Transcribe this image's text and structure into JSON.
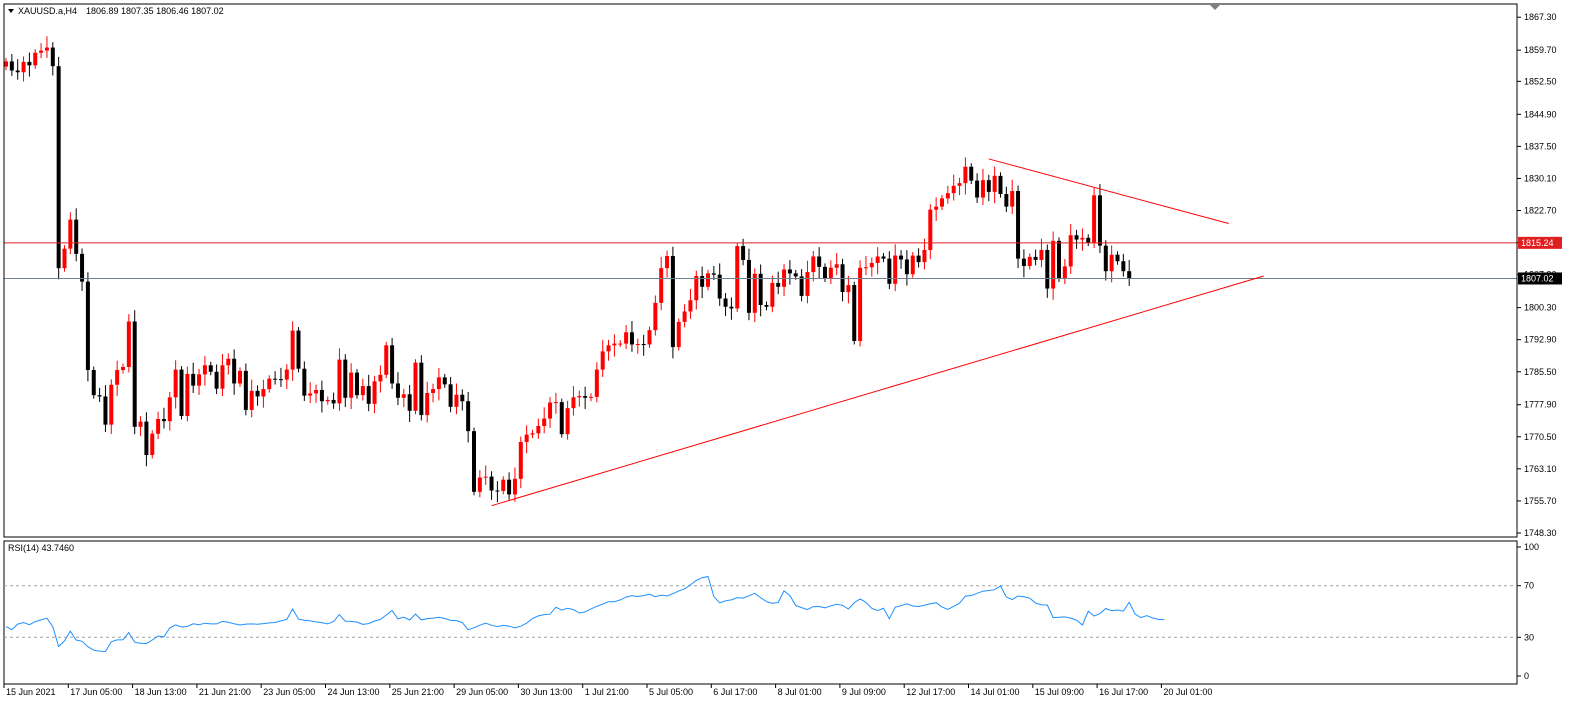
{
  "header": {
    "symbol": "XAUUSD.a,H4",
    "ohlc": "1806.89 1807.35 1806.46 1807.02"
  },
  "indicator": {
    "label": "RSI(14) 43.7460"
  },
  "colors": {
    "bull": "#ff0000",
    "bear": "#000000",
    "resistance_line": "#e02020",
    "trend_lines": "#ff0000",
    "rsi_line": "#1e90ff",
    "price_line": "#708090",
    "frame": "#000000"
  },
  "icons": [
    "dropdown-triangle-icon",
    "scroll-marker-icon"
  ],
  "chart_data": [
    {
      "type": "candlestick",
      "symbol": "XAUUSD.a",
      "timeframe": "H4",
      "ylim": [
        1748.3,
        1868.5
      ],
      "y_ticks": [
        "1867.30",
        "1859.70",
        "1852.50",
        "1844.90",
        "1837.50",
        "1830.10",
        "1822.70",
        "1815.30",
        "1807.90",
        "1800.30",
        "1792.90",
        "1785.50",
        "1777.90",
        "1770.50",
        "1763.10",
        "1755.70",
        "1748.30"
      ],
      "x_ticks": [
        "15 Jun 2021",
        "17 Jun 05:00",
        "18 Jun 13:00",
        "21 Jun 21:00",
        "23 Jun 05:00",
        "24 Jun 13:00",
        "25 Jun 21:00",
        "29 Jun 05:00",
        "30 Jun 13:00",
        "1 Jul 21:00",
        "5 Jul 05:00",
        "6 Jul 17:00",
        "8 Jul 01:00",
        "9 Jul 09:00",
        "12 Jul 17:00",
        "14 Jul 01:00",
        "15 Jul 09:00",
        "16 Jul 17:00",
        "20 Jul 01:00"
      ],
      "current_price": 1807.02,
      "current_price_label": "1807.02",
      "horizontal_level": 1815.24,
      "horizontal_level_label": "1815.24",
      "trend_lines": [
        {
          "name": "descending-resistance",
          "from": {
            "bar": 168,
            "price": 1834.6
          },
          "to": {
            "bar": 209,
            "price": 1819.7
          }
        },
        {
          "name": "ascending-support",
          "from": {
            "bar": 83,
            "price": 1754.6
          },
          "to": {
            "bar": 215,
            "price": 1807.6
          }
        }
      ],
      "closes": [
        1857.1,
        1855.0,
        1854.6,
        1857.0,
        1856.2,
        1859.1,
        1859.6,
        1860.3,
        1856.0,
        1809.4,
        1813.9,
        1820.6,
        1812.7,
        1806.3,
        1785.9,
        1780.1,
        1779.8,
        1773.3,
        1782.5,
        1785.9,
        1786.6,
        1797.1,
        1772.8,
        1774.0,
        1766.3,
        1771.2,
        1774.6,
        1774.1,
        1779.6,
        1786.0,
        1775.3,
        1785.0,
        1782.3,
        1784.9,
        1787.0,
        1785.5,
        1781.6,
        1787.0,
        1788.5,
        1782.8,
        1785.7,
        1776.7,
        1781.1,
        1779.8,
        1781.5,
        1783.9,
        1783.8,
        1783.7,
        1786.0,
        1795.0,
        1786.2,
        1780.0,
        1780.5,
        1781.3,
        1778.7,
        1779.0,
        1778.2,
        1788.3,
        1779.5,
        1785.3,
        1780.1,
        1782.2,
        1778.1,
        1783.3,
        1784.8,
        1791.6,
        1782.8,
        1779.5,
        1780.3,
        1776.5,
        1787.6,
        1775.5,
        1780.6,
        1781.5,
        1784.2,
        1782.6,
        1777.4,
        1780.2,
        1778.7,
        1771.8,
        1757.8,
        1761.1,
        1761.3,
        1758.1,
        1758.0,
        1760.6,
        1757.2,
        1760.8,
        1769.3,
        1771.0,
        1771.3,
        1773.0,
        1774.7,
        1778.4,
        1778.5,
        1771.1,
        1777.1,
        1779.6,
        1779.9,
        1779.5,
        1779.7,
        1786.0,
        1790.2,
        1791.6,
        1792.0,
        1792.0,
        1794.6,
        1791.8,
        1791.9,
        1791.8,
        1795.1,
        1801.4,
        1809.4,
        1812.2,
        1791.2,
        1797.0,
        1799.4,
        1802.0,
        1807.6,
        1805.1,
        1808.2,
        1807.9,
        1802.4,
        1800.5,
        1800.1,
        1814.5,
        1811.3,
        1799.1,
        1808.1,
        1800.9,
        1800.5,
        1806.0,
        1805.1,
        1809.1,
        1808.2,
        1807.5,
        1803.0,
        1808.5,
        1812.1,
        1809.7,
        1807.0,
        1809.5,
        1810.3,
        1803.9,
        1805.5,
        1792.6,
        1809.5,
        1809.6,
        1810.6,
        1812.1,
        1811.6,
        1805.8,
        1812.3,
        1811.4,
        1808.0,
        1812.3,
        1810.8,
        1813.6,
        1822.9,
        1823.6,
        1825.5,
        1826.7,
        1828.4,
        1829.0,
        1832.8,
        1829.6,
        1825.7,
        1829.7,
        1827.0,
        1830.7,
        1826.5,
        1823.6,
        1827.2,
        1811.6,
        1809.9,
        1812.0,
        1811.3,
        1813.6,
        1804.7,
        1815.7,
        1807.0,
        1809.8,
        1817.0,
        1816.0,
        1816.4,
        1815.3,
        1826.2,
        1814.6,
        1808.7,
        1812.5,
        1811.0,
        1808.7,
        1807.0
      ]
    },
    {
      "type": "line",
      "name": "RSI(14)",
      "value_label": "43.7460",
      "ylim": [
        0,
        100
      ],
      "y_ticks": [
        "100",
        "70",
        "30",
        "0"
      ],
      "levels": [
        70,
        30
      ],
      "values": [
        38.3,
        35.9,
        40.2,
        41.5,
        39.8,
        42.2,
        43.5,
        44.8,
        38.3,
        22.9,
        27.2,
        34.8,
        27.9,
        26.9,
        22.7,
        20.0,
        19.3,
        18.9,
        26.5,
        28.0,
        28.1,
        33.7,
        26.2,
        25.4,
        25.1,
        27.9,
        30.9,
        30.4,
        37.3,
        39.6,
        38.0,
        38.4,
        40.5,
        39.8,
        40.9,
        40.4,
        40.4,
        42.3,
        41.6,
        40.5,
        39.5,
        40.2,
        40.4,
        40.1,
        40.6,
        41.2,
        41.5,
        42.7,
        43.8,
        51.9,
        44.1,
        43.2,
        42.7,
        41.9,
        41.3,
        40.4,
        42.3,
        47.6,
        42.5,
        42.3,
        41.8,
        40.0,
        40.6,
        42.6,
        43.8,
        47.3,
        50.7,
        44.3,
        45.6,
        43.4,
        48.0,
        43.5,
        44.5,
        44.9,
        45.6,
        44.6,
        43.1,
        43.0,
        41.4,
        35.9,
        37.4,
        39.4,
        41.0,
        39.4,
        38.3,
        39.2,
        38.6,
        37.4,
        38.6,
        40.9,
        44.5,
        46.6,
        47.6,
        47.9,
        53.3,
        51.1,
        52.5,
        51.5,
        48.8,
        49.7,
        52.0,
        54.0,
        55.7,
        57.6,
        57.6,
        59.0,
        61.2,
        62.3,
        61.6,
        62.3,
        63.4,
        61.5,
        62.7,
        62.0,
        63.8,
        66.0,
        67.6,
        70.6,
        74.2,
        76.2,
        77.1,
        61.7,
        56.7,
        58.3,
        59.0,
        60.8,
        60.4,
        62.2,
        64.1,
        60.8,
        57.6,
        56.4,
        57.0,
        66.0,
        62.3,
        54.6,
        53.0,
        51.5,
        53.8,
        53.9,
        52.9,
        54.4,
        55.6,
        54.8,
        51.9,
        56.9,
        59.7,
        57.1,
        52.5,
        50.7,
        52.5,
        44.4,
        53.3,
        54.5,
        56.0,
        54.3,
        53.9,
        54.9,
        56.0,
        56.8,
        53.6,
        51.6,
        54.0,
        56.4,
        61.9,
        62.3,
        64.1,
        65.7,
        66.3,
        66.9,
        69.8,
        61.3,
        59.2,
        62.0,
        61.4,
        60.3,
        56.6,
        55.1,
        55.0,
        45.3,
        45.6,
        45.8,
        44.9,
        43.3,
        39.5,
        50.2,
        46.4,
        48.5,
        52.3,
        50.6,
        51.2,
        50.3,
        57.2,
        48.1,
        45.3,
        46.8,
        45.0,
        43.9,
        43.7
      ]
    }
  ]
}
